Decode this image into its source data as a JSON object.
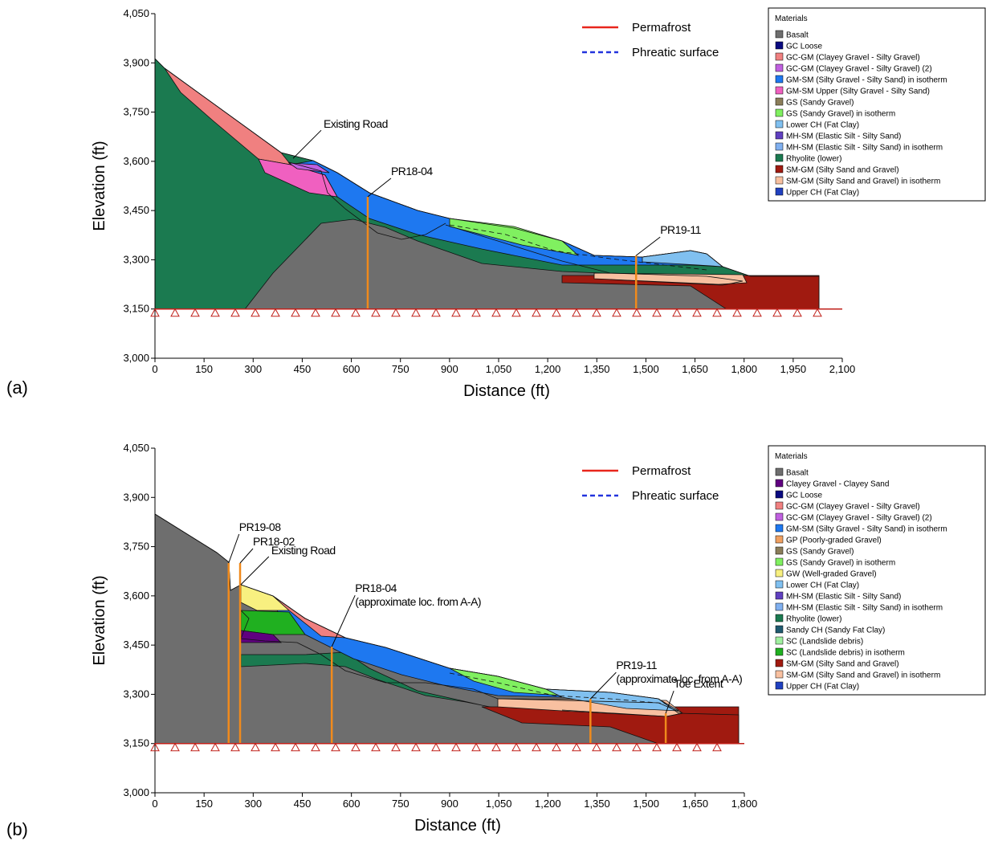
{
  "chart_data": [
    {
      "type": "cross-section",
      "panel_label": "(a)",
      "xlabel": "Distance (ft)",
      "ylabel": "Elevation (ft)",
      "xlim": [
        0,
        2100
      ],
      "ylim": [
        3000,
        4050
      ],
      "xticks": [
        0,
        150,
        300,
        450,
        600,
        750,
        900,
        {
          "value": 1050,
          "label": "1,050"
        },
        {
          "value": 1200,
          "label": "1,200"
        },
        {
          "value": 1350,
          "label": "1,350"
        },
        {
          "value": 1500,
          "label": "1,500"
        },
        {
          "value": 1650,
          "label": "1,650"
        },
        {
          "value": 1800,
          "label": "1,800"
        },
        {
          "value": 1950,
          "label": "1,950"
        },
        {
          "value": 2100,
          "label": "2,100"
        }
      ],
      "yticks": [
        {
          "value": 3000,
          "label": "3,000"
        },
        {
          "value": 3150,
          "label": "3,150"
        },
        {
          "value": 3300,
          "label": "3,300"
        },
        {
          "value": 3450,
          "label": "3,450"
        },
        {
          "value": 3600,
          "label": "3,600"
        },
        {
          "value": 3750,
          "label": "3,750"
        },
        {
          "value": 3900,
          "label": "3,900"
        },
        {
          "value": 4050,
          "label": "4,050"
        }
      ],
      "series": [
        {
          "name": "Permafrost",
          "color": "#e8261c"
        },
        {
          "name": "Phreatic surface",
          "color": "#2233dd"
        }
      ],
      "legend_title": "Materials",
      "materials": [
        {
          "name": "Basalt",
          "color": "#6e6e6e"
        },
        {
          "name": "GC Loose",
          "color": "#0a0a80"
        },
        {
          "name": "GC-GM (Clayey Gravel - Silty Gravel)",
          "color": "#f08080"
        },
        {
          "name": "GC-GM (Clayey Gravel - Silty Gravel) (2)",
          "color": "#c060e0"
        },
        {
          "name": "GM-SM (Silty Gravel - Silty Sand) in isotherm",
          "color": "#1e78f0"
        },
        {
          "name": "GM-SM Upper (Silty Gravel - Silty Sand)",
          "color": "#f060c0"
        },
        {
          "name": "GS (Sandy Gravel)",
          "color": "#8b7d5a"
        },
        {
          "name": "GS (Sandy Gravel) in isotherm",
          "color": "#80f060"
        },
        {
          "name": "Lower CH (Fat Clay)",
          "color": "#80c0f0"
        },
        {
          "name": "MH-SM (Elastic Silt - Silty Sand)",
          "color": "#6040c0"
        },
        {
          "name": "MH-SM (Elastic Silt - Silty Sand) in isotherm",
          "color": "#80b0f0"
        },
        {
          "name": "Rhyolite (lower)",
          "color": "#1b7a50"
        },
        {
          "name": "SM-GM (Silty Sand and Gravel)",
          "color": "#a01a10"
        },
        {
          "name": "SM-GM (Silty Sand and Gravel) in isotherm",
          "color": "#f8c0a0"
        },
        {
          "name": "Upper CH (Fat Clay)",
          "color": "#2040c0"
        }
      ],
      "boreholes": [
        {
          "label": "PR18-04",
          "x": 650,
          "top": 3492,
          "bottom": 3150
        },
        {
          "label": "PR19-11",
          "x": 1470,
          "top": 3313,
          "bottom": 3150
        }
      ],
      "borehole_color": "#f08a1c",
      "annotations": [
        {
          "text": "Existing Road",
          "x": 422,
          "y": 3609
        }
      ]
    },
    {
      "type": "cross-section",
      "panel_label": "(b)",
      "xlabel": "Distance (ft)",
      "ylabel": "Elevation (ft)",
      "xlim": [
        0,
        1800
      ],
      "ylim": [
        3000,
        4050
      ],
      "xticks": [
        0,
        150,
        300,
        450,
        600,
        750,
        900,
        {
          "value": 1050,
          "label": "1,050"
        },
        {
          "value": 1200,
          "label": "1,200"
        },
        {
          "value": 1350,
          "label": "1,350"
        },
        {
          "value": 1500,
          "label": "1,500"
        },
        {
          "value": 1650,
          "label": "1,650"
        },
        {
          "value": 1800,
          "label": "1,800"
        }
      ],
      "yticks": [
        {
          "value": 3000,
          "label": "3,000"
        },
        {
          "value": 3150,
          "label": "3,150"
        },
        {
          "value": 3300,
          "label": "3,300"
        },
        {
          "value": 3450,
          "label": "3,450"
        },
        {
          "value": 3600,
          "label": "3,600"
        },
        {
          "value": 3750,
          "label": "3,750"
        },
        {
          "value": 3900,
          "label": "3,900"
        },
        {
          "value": 4050,
          "label": "4,050"
        }
      ],
      "series": [
        {
          "name": "Permafrost",
          "color": "#e8261c"
        },
        {
          "name": "Phreatic surface",
          "color": "#2233dd"
        }
      ],
      "legend_title": "Materials",
      "materials": [
        {
          "name": "Basalt",
          "color": "#6e6e6e"
        },
        {
          "name": "Clayey Gravel - Clayey Sand",
          "color": "#600080"
        },
        {
          "name": "GC Loose",
          "color": "#0a0a80"
        },
        {
          "name": "GC-GM (Clayey Gravel - Silty Gravel)",
          "color": "#f08080"
        },
        {
          "name": "GC-GM (Clayey Gravel - Silty Gravel) (2)",
          "color": "#c060e0"
        },
        {
          "name": "GM-SM (Silty Gravel - Silty Sand) in isotherm",
          "color": "#1e78f0"
        },
        {
          "name": "GP (Poorly-graded Gravel)",
          "color": "#f0a060"
        },
        {
          "name": "GS (Sandy Gravel)",
          "color": "#8b7d5a"
        },
        {
          "name": "GS (Sandy Gravel) in isotherm",
          "color": "#80f060"
        },
        {
          "name": "GW (Well-graded Gravel)",
          "color": "#f8f080"
        },
        {
          "name": "Lower CH (Fat Clay)",
          "color": "#80c0f0"
        },
        {
          "name": "MH-SM (Elastic Silt - Silty Sand)",
          "color": "#6040c0"
        },
        {
          "name": "MH-SM (Elastic Silt - Silty Sand) in isotherm",
          "color": "#80b0f0"
        },
        {
          "name": "Rhyolite (lower)",
          "color": "#1b7a50"
        },
        {
          "name": "Sandy CH (Sandy Fat Clay)",
          "color": "#205a70"
        },
        {
          "name": "SC (Landslide debris)",
          "color": "#a0f0a0"
        },
        {
          "name": "SC (Landslide debris) in isotherm",
          "color": "#20b020"
        },
        {
          "name": "SM-GM (Silty Sand and Gravel)",
          "color": "#a01a10"
        },
        {
          "name": "SM-GM (Silty Sand and Gravel) in isotherm",
          "color": "#f8c0a0"
        },
        {
          "name": "Upper CH (Fat Clay)",
          "color": "#2040c0"
        }
      ],
      "boreholes": [
        {
          "label": "PR19-08",
          "x": 225,
          "top": 3700,
          "bottom": 3150
        },
        {
          "label": "PR18-02",
          "x": 260,
          "top": 3700,
          "bottom": 3150
        },
        {
          "label": "PR18-04",
          "note": "(approximate loc. from A-A)",
          "x": 540,
          "top": 3445,
          "bottom": 3150
        },
        {
          "label": "PR19-11",
          "note": "(approximate loc. from A-A)",
          "x": 1330,
          "top": 3286,
          "bottom": 3150
        },
        {
          "label": "Toe Extent",
          "x": 1560,
          "top": 3242,
          "bottom": 3150
        }
      ],
      "borehole_color": "#f08a1c",
      "annotations": [
        {
          "text": "Existing Road",
          "x": 262,
          "y": 3634
        }
      ]
    }
  ]
}
